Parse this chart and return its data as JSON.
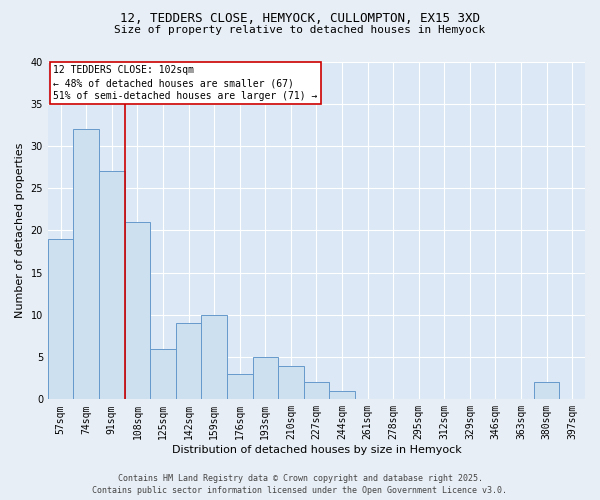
{
  "title_line1": "12, TEDDERS CLOSE, HEMYOCK, CULLOMPTON, EX15 3XD",
  "title_line2": "Size of property relative to detached houses in Hemyock",
  "xlabel": "Distribution of detached houses by size in Hemyock",
  "ylabel": "Number of detached properties",
  "bar_color": "#cce0f0",
  "bar_edge_color": "#6699cc",
  "background_color": "#dce8f5",
  "fig_background_color": "#e8eef5",
  "grid_color": "#ffffff",
  "categories": [
    "57sqm",
    "74sqm",
    "91sqm",
    "108sqm",
    "125sqm",
    "142sqm",
    "159sqm",
    "176sqm",
    "193sqm",
    "210sqm",
    "227sqm",
    "244sqm",
    "261sqm",
    "278sqm",
    "295sqm",
    "312sqm",
    "329sqm",
    "346sqm",
    "363sqm",
    "380sqm",
    "397sqm"
  ],
  "values": [
    19,
    32,
    27,
    21,
    6,
    9,
    10,
    3,
    5,
    4,
    2,
    1,
    0,
    0,
    0,
    0,
    0,
    0,
    0,
    2,
    0
  ],
  "ylim": [
    0,
    40
  ],
  "yticks": [
    0,
    5,
    10,
    15,
    20,
    25,
    30,
    35,
    40
  ],
  "red_line_x": 2.5,
  "annotation_text": "12 TEDDERS CLOSE: 102sqm\n← 48% of detached houses are smaller (67)\n51% of semi-detached houses are larger (71) →",
  "annotation_box_color": "#ffffff",
  "annotation_box_edge": "#cc0000",
  "red_line_color": "#cc0000",
  "footer_line1": "Contains HM Land Registry data © Crown copyright and database right 2025.",
  "footer_line2": "Contains public sector information licensed under the Open Government Licence v3.0.",
  "title_fontsize": 9,
  "subtitle_fontsize": 8,
  "axis_label_fontsize": 8,
  "tick_fontsize": 7,
  "annotation_fontsize": 7,
  "footer_fontsize": 6
}
